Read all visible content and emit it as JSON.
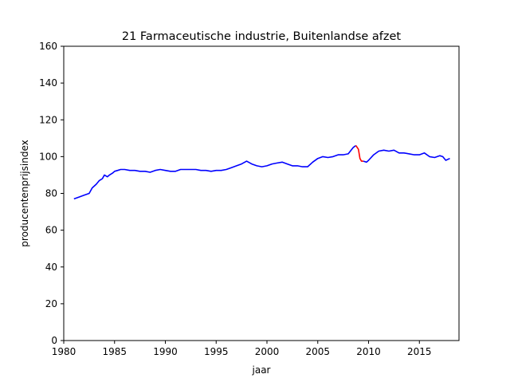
{
  "chart_data": {
    "type": "line",
    "title": "21 Farmaceutische industrie, Buitenlandse afzet",
    "xlabel": "jaar",
    "ylabel": "producentenprijsindex",
    "xlim": [
      1980,
      2018.9
    ],
    "ylim": [
      0,
      160
    ],
    "x_ticks": [
      "1980",
      "1985",
      "1990",
      "1995",
      "2000",
      "2005",
      "2010",
      "2015"
    ],
    "y_ticks": [
      "0",
      "20",
      "40",
      "60",
      "80",
      "100",
      "120",
      "140",
      "160"
    ],
    "grid": false,
    "legend": "none",
    "series": [
      {
        "color": "#0000ff",
        "x": [
          1981.0,
          1981.5,
          1982.0,
          1982.5,
          1982.8,
          1983.2,
          1983.5,
          1983.8,
          1984.0,
          1984.3,
          1984.5,
          1984.8,
          1985.0,
          1985.3,
          1985.6,
          1986.0,
          1986.5,
          1987.0,
          1987.5,
          1988.0,
          1988.5,
          1989.0,
          1989.5,
          1990.0,
          1990.5,
          1991.0,
          1991.5,
          1992.0,
          1992.5,
          1993.0,
          1993.5,
          1994.0,
          1994.5,
          1995.0,
          1995.5,
          1996.0,
          1996.5,
          1997.0,
          1997.5,
          1998.0,
          1998.5,
          1999.0,
          1999.5,
          2000.0,
          2000.5,
          2001.0,
          2001.5,
          2002.0,
          2002.5,
          2003.0,
          2003.5,
          2004.0,
          2004.5,
          2005.0,
          2005.5,
          2006.0,
          2006.5,
          2007.0,
          2007.5,
          2008.0,
          2008.5,
          2008.75
        ],
        "y": [
          77,
          78,
          79,
          80,
          83,
          85,
          87,
          88,
          90,
          89,
          90,
          91,
          92,
          92.5,
          93,
          93,
          92.5,
          92.5,
          92,
          92,
          91.5,
          92.5,
          93,
          92.5,
          92,
          92,
          93,
          93,
          93,
          93,
          92.5,
          92.5,
          92,
          92.5,
          92.5,
          93,
          94,
          95,
          96,
          97.5,
          96,
          95,
          94.5,
          95,
          96,
          96.5,
          97,
          96,
          95,
          95,
          94.5,
          94.5,
          97,
          99,
          100,
          99.5,
          100,
          101,
          101,
          101.5,
          105,
          106
        ]
      },
      {
        "color": "#ff0000",
        "x": [
          2008.75,
          2009.0,
          2009.15,
          2009.3,
          2009.5
        ],
        "y": [
          106,
          104,
          99,
          97.5,
          97.5
        ]
      },
      {
        "color": "#0000ff",
        "x": [
          2009.5,
          2009.8,
          2010.0,
          2010.5,
          2011.0,
          2011.5,
          2012.0,
          2012.5,
          2013.0,
          2013.5,
          2014.0,
          2014.5,
          2015.0,
          2015.5,
          2016.0,
          2016.5,
          2017.0,
          2017.3,
          2017.6,
          2018.0
        ],
        "y": [
          97.5,
          97,
          98,
          101,
          103,
          103.5,
          103,
          103.5,
          102,
          102,
          101.5,
          101,
          101,
          102,
          100,
          99.5,
          100.5,
          100,
          98,
          99
        ]
      }
    ]
  }
}
